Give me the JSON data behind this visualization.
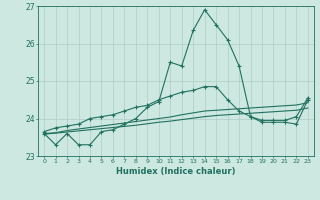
{
  "xlabel": "Humidex (Indice chaleur)",
  "x": [
    0,
    1,
    2,
    3,
    4,
    5,
    6,
    7,
    8,
    9,
    10,
    11,
    12,
    13,
    14,
    15,
    16,
    17,
    18,
    19,
    20,
    21,
    22,
    23
  ],
  "line1": [
    23.6,
    23.3,
    23.6,
    23.3,
    23.3,
    23.65,
    23.7,
    23.85,
    24.0,
    24.3,
    24.45,
    25.5,
    25.4,
    26.35,
    26.9,
    26.5,
    26.1,
    25.4,
    24.05,
    23.9,
    23.9,
    23.9,
    23.85,
    24.5
  ],
  "line2": [
    23.65,
    23.75,
    23.8,
    23.85,
    24.0,
    24.05,
    24.1,
    24.2,
    24.3,
    24.35,
    24.5,
    24.6,
    24.7,
    24.75,
    24.85,
    24.85,
    24.5,
    24.2,
    24.05,
    23.95,
    23.95,
    23.95,
    24.05,
    24.55
  ],
  "line3": [
    23.6,
    23.62,
    23.68,
    23.72,
    23.76,
    23.8,
    23.84,
    23.88,
    23.92,
    23.96,
    24.0,
    24.04,
    24.1,
    24.15,
    24.2,
    24.22,
    24.24,
    24.26,
    24.28,
    24.3,
    24.32,
    24.34,
    24.36,
    24.42
  ],
  "line4": [
    23.58,
    23.61,
    23.64,
    23.67,
    23.7,
    23.73,
    23.76,
    23.79,
    23.82,
    23.86,
    23.9,
    23.93,
    23.97,
    24.01,
    24.05,
    24.08,
    24.1,
    24.12,
    24.14,
    24.16,
    24.18,
    24.2,
    24.22,
    24.28
  ],
  "line_color": "#217060",
  "bg_color": "#cce8e0",
  "grid_color": "#aecdc5",
  "ylim": [
    23.0,
    27.0
  ],
  "xlim": [
    -0.5,
    23.5
  ],
  "yticks": [
    23,
    24,
    25,
    26,
    27
  ],
  "xticks": [
    0,
    1,
    2,
    3,
    4,
    5,
    6,
    7,
    8,
    9,
    10,
    11,
    12,
    13,
    14,
    15,
    16,
    17,
    18,
    19,
    20,
    21,
    22,
    23
  ]
}
